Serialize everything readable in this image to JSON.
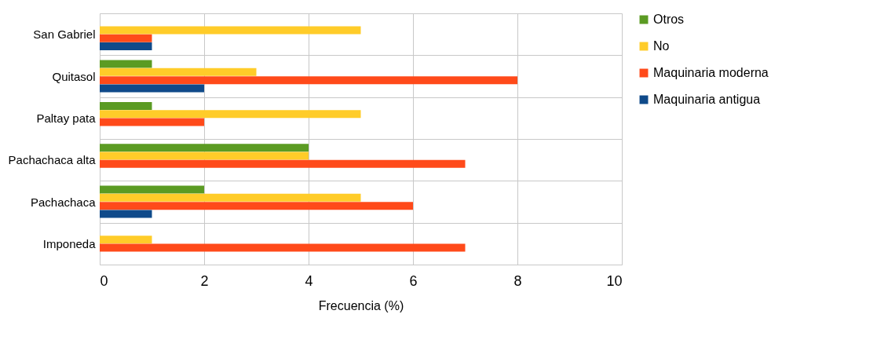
{
  "chart_data": {
    "type": "bar",
    "orientation": "horizontal",
    "xlabel": "Frecuencia (%)",
    "categories": [
      "San Gabriel",
      "Quitasol",
      "Paltay pata",
      "Pachachaca alta",
      "Pachachaca",
      "Imponeda"
    ],
    "series": [
      {
        "name": "Otros",
        "color": "#5b9b23",
        "values": [
          null,
          1,
          1,
          4,
          2,
          null
        ]
      },
      {
        "name": "No",
        "color": "#ffcc29",
        "values": [
          5,
          3,
          5,
          4,
          5,
          1
        ]
      },
      {
        "name": "Maquinaria moderna",
        "color": "#ff4a1a",
        "values": [
          1,
          8,
          2,
          7,
          6,
          7
        ]
      },
      {
        "name": "Maquinaria antigua",
        "color": "#0f4a8a",
        "values": [
          1,
          2,
          null,
          null,
          1,
          null
        ]
      }
    ],
    "xlim": [
      0,
      10
    ],
    "xticks": [
      0,
      2,
      4,
      6,
      8,
      10
    ],
    "grid": true,
    "legend": "right"
  }
}
